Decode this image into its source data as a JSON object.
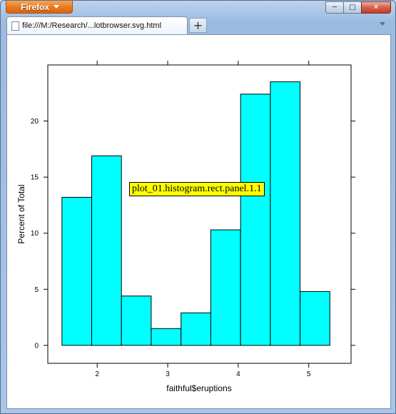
{
  "browser": {
    "app_button_label": "Firefox",
    "tab_title": "file:///M:/Research/...lotbrowser.svg.html",
    "new_tab_label": "+",
    "controls": {
      "minimize": "─",
      "maximize": "□",
      "close": "✕"
    }
  },
  "tooltip": {
    "text": "plot_01.histogram.rect.panel.1.1"
  },
  "chart_data": {
    "type": "bar",
    "xlabel": "faithful$eruptions",
    "ylabel": "Percent of Total",
    "xlim": [
      1.3,
      5.6
    ],
    "ylim": [
      -1.6,
      25.0
    ],
    "x_ticks": [
      2,
      3,
      4,
      5
    ],
    "y_ticks": [
      0,
      5,
      10,
      15,
      20
    ],
    "bin_edges": [
      1.5,
      1.9222,
      2.3444,
      2.7667,
      3.1889,
      3.6111,
      4.0333,
      4.4556,
      4.8778,
      5.3
    ],
    "values": [
      13.2,
      16.9,
      4.4,
      1.5,
      2.9,
      10.3,
      22.4,
      23.5,
      4.8
    ],
    "bar_color": "#00ffff",
    "grid": false
  }
}
